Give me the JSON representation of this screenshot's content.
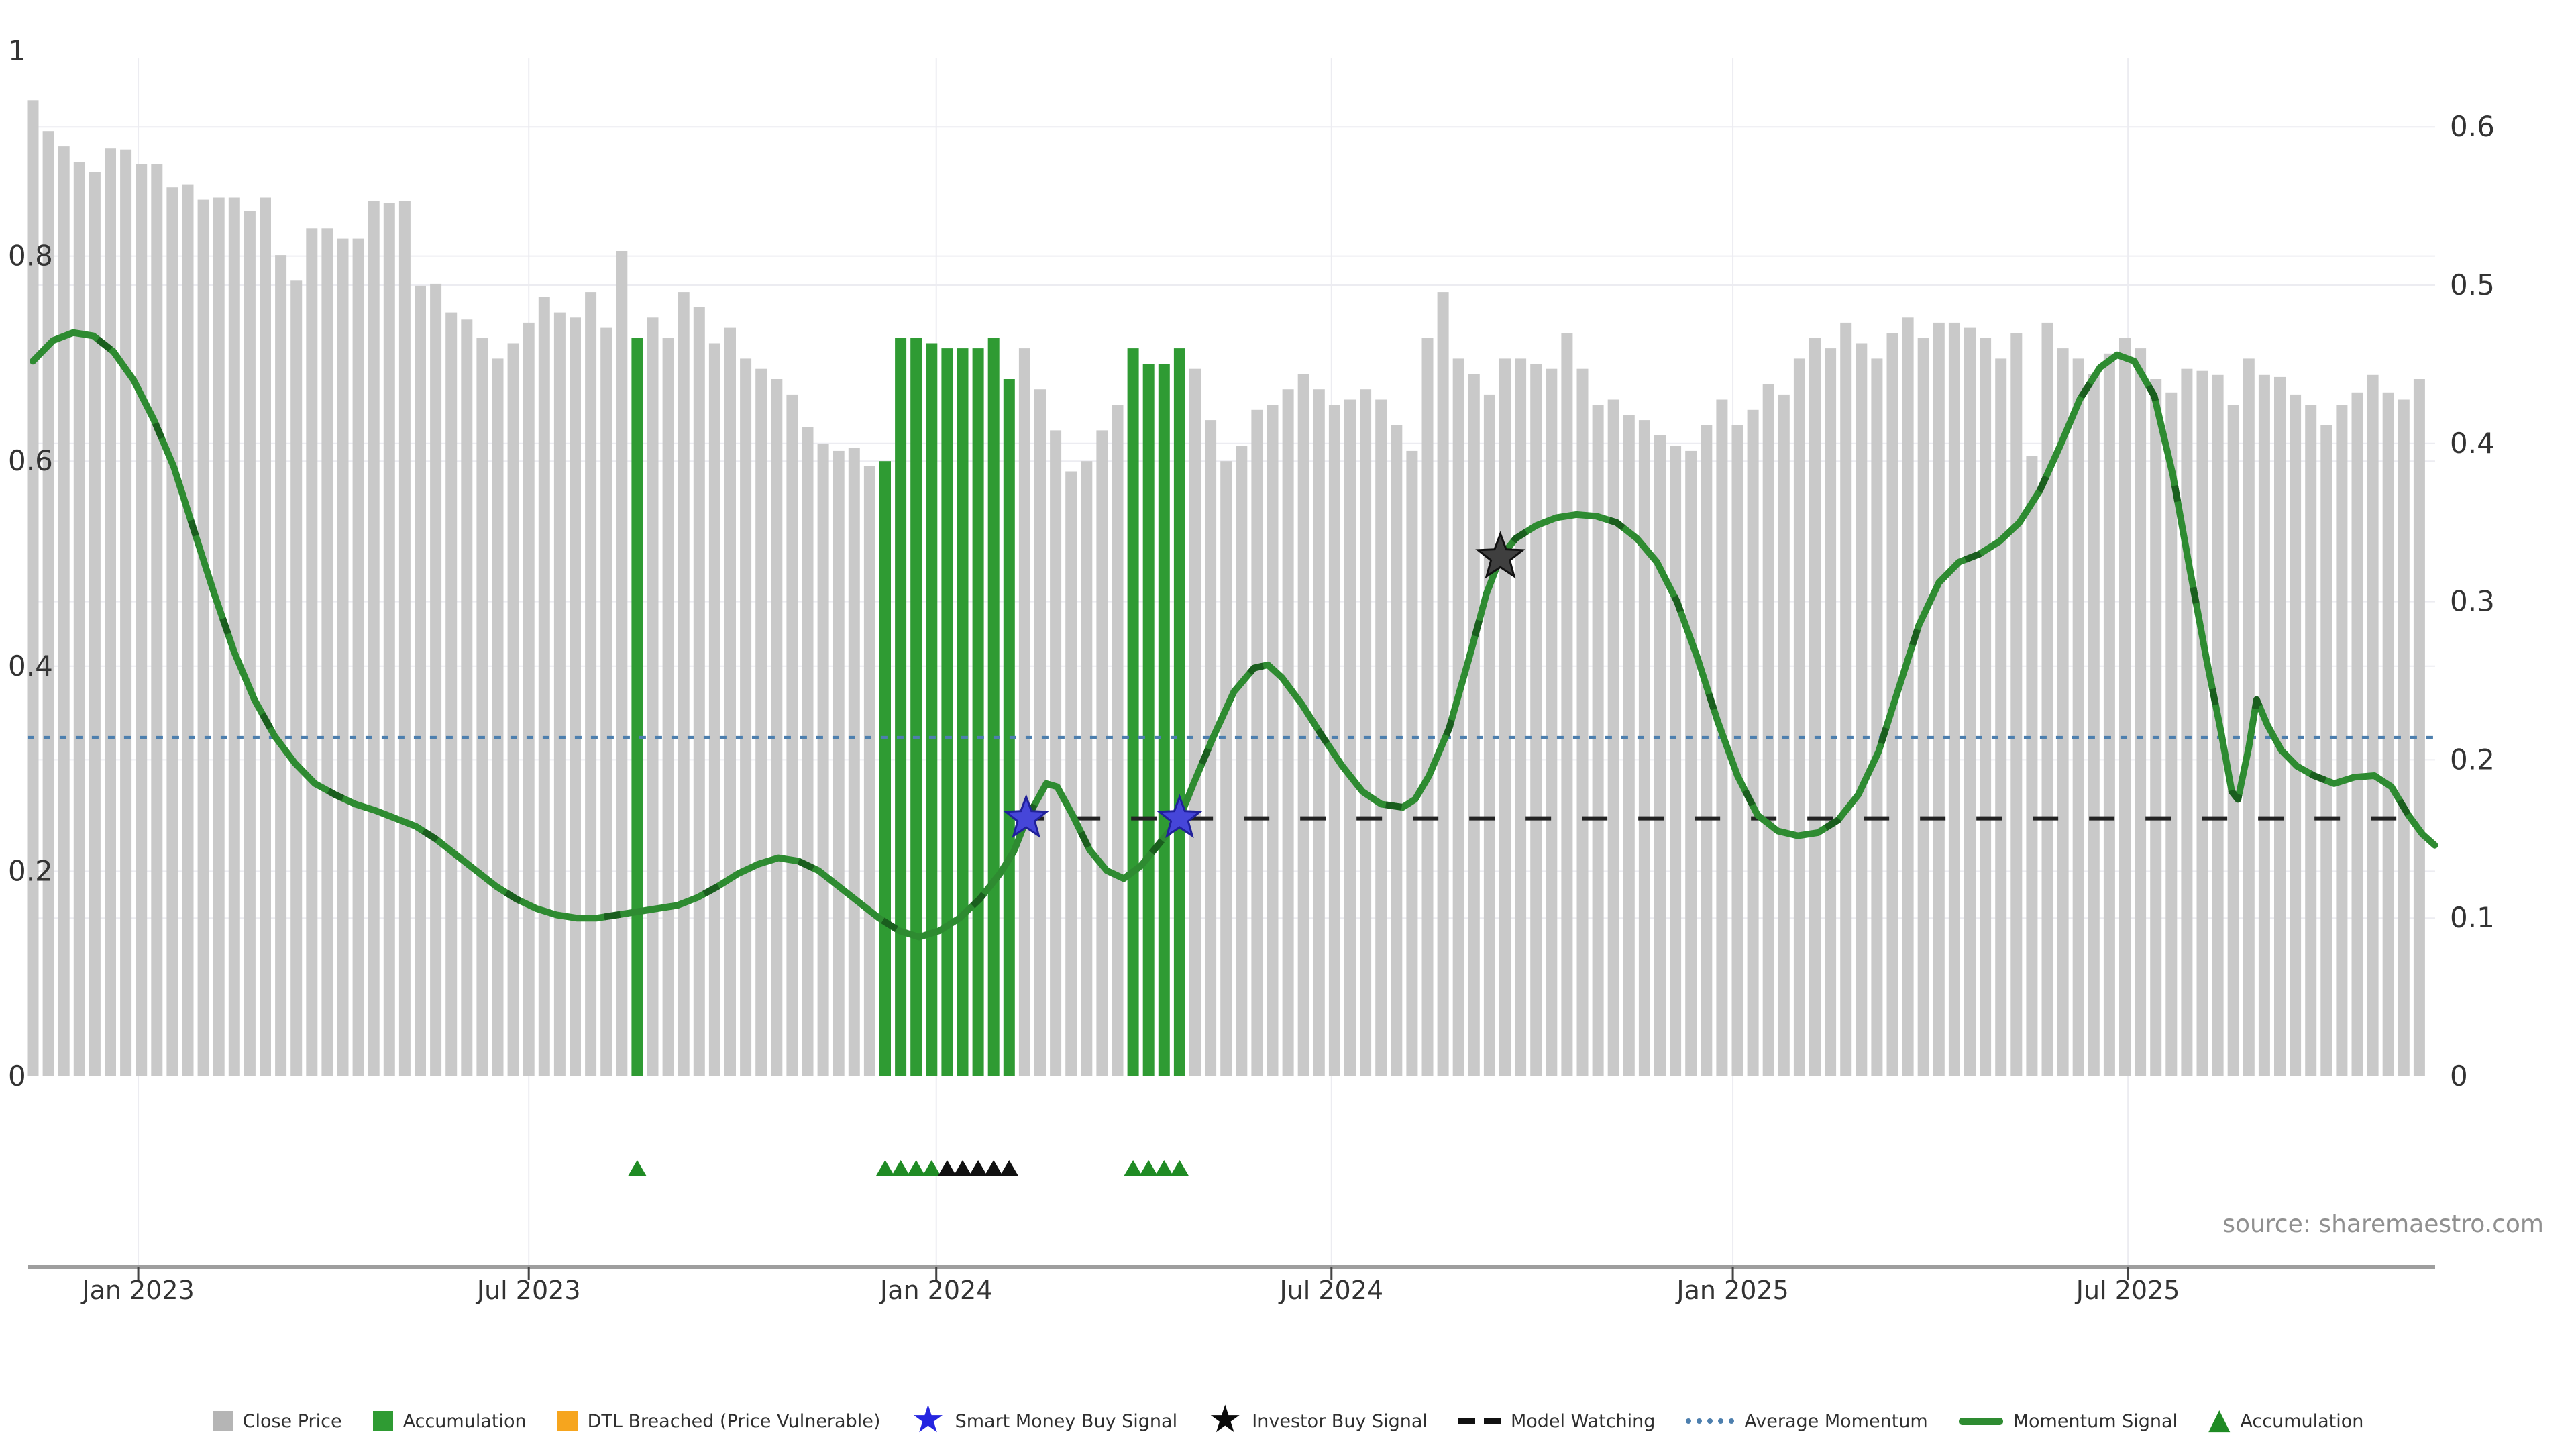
{
  "source_note": "source: sharemaestro.com",
  "chart_data": {
    "type": "bar+line",
    "title": "",
    "x_unit": "weeks (Nov 2022 - Nov 2025)",
    "grid": "on",
    "x_ticks": [
      {
        "label": "Jan 2023",
        "week": 6.8
      },
      {
        "label": "Jul 2023",
        "week": 32.0
      },
      {
        "label": "Jan 2024",
        "week": 58.3
      },
      {
        "label": "Jul 2024",
        "week": 83.8
      },
      {
        "label": "Jan 2025",
        "week": 109.7
      },
      {
        "label": "Jul 2025",
        "week": 135.2
      }
    ],
    "left_axis": {
      "range": [
        0,
        1
      ],
      "ticks": [
        {
          "label": "1",
          "value": 1
        },
        {
          "label": "0.8",
          "value": 0.8
        },
        {
          "label": "0.6",
          "value": 0.6
        },
        {
          "label": "0.4",
          "value": 0.4
        },
        {
          "label": "0.2",
          "value": 0.2
        },
        {
          "label": "0",
          "value": 0
        }
      ]
    },
    "right_axis": {
      "range": [
        0,
        0.64
      ],
      "ticks": [
        {
          "label": "0.6",
          "value": 0.6
        },
        {
          "label": "0.5",
          "value": 0.5
        },
        {
          "label": "0.4",
          "value": 0.4
        },
        {
          "label": "0.3",
          "value": 0.3
        },
        {
          "label": "0.2",
          "value": 0.2
        },
        {
          "label": "0.1",
          "value": 0.1
        },
        {
          "label": "0",
          "value": 0
        }
      ]
    },
    "series": {
      "close_price": {
        "name": "Close Price",
        "type": "bar",
        "axis": "left",
        "color": "#c9c9c9",
        "values": [
          0.952,
          0.922,
          0.907,
          0.892,
          0.882,
          0.905,
          0.904,
          0.89,
          0.89,
          0.867,
          0.87,
          0.855,
          0.857,
          0.857,
          0.844,
          0.857,
          0.801,
          0.776,
          0.827,
          0.827,
          0.817,
          0.817,
          0.854,
          0.852,
          0.854,
          0.771,
          0.773,
          0.745,
          0.738,
          0.72,
          0.7,
          0.715,
          0.735,
          0.76,
          0.745,
          0.74,
          0.765,
          0.73,
          0.805,
          0.72,
          0.74,
          0.72,
          0.765,
          0.75,
          0.715,
          0.73,
          0.7,
          0.69,
          0.68,
          0.665,
          0.633,
          0.617,
          0.61,
          0.613,
          0.595,
          0.6,
          0.72,
          0.72,
          0.715,
          0.71,
          0.71,
          0.71,
          0.72,
          0.68,
          0.71,
          0.67,
          0.63,
          0.59,
          0.6,
          0.63,
          0.655,
          0.71,
          0.695,
          0.695,
          0.71,
          0.69,
          0.64,
          0.6,
          0.615,
          0.65,
          0.655,
          0.67,
          0.685,
          0.67,
          0.655,
          0.66,
          0.67,
          0.66,
          0.635,
          0.61,
          0.72,
          0.765,
          0.7,
          0.685,
          0.665,
          0.7,
          0.7,
          0.695,
          0.69,
          0.725,
          0.69,
          0.655,
          0.66,
          0.645,
          0.64,
          0.625,
          0.615,
          0.61,
          0.635,
          0.66,
          0.635,
          0.65,
          0.675,
          0.665,
          0.7,
          0.72,
          0.71,
          0.735,
          0.715,
          0.7,
          0.725,
          0.74,
          0.72,
          0.735,
          0.735,
          0.73,
          0.72,
          0.7,
          0.725,
          0.605,
          0.735,
          0.71,
          0.7,
          0.685,
          0.705,
          0.72,
          0.71,
          0.68,
          0.667,
          0.69,
          0.688,
          0.684,
          0.655,
          0.7,
          0.684,
          0.682,
          0.665,
          0.655,
          0.635,
          0.655,
          0.667,
          0.684,
          0.667,
          0.66,
          0.68
        ]
      },
      "accumulation_bars": {
        "name": "Accumulation",
        "type": "bar-highlight",
        "color": "#2f9b33",
        "weeks": [
          39,
          55,
          56,
          57,
          58,
          59,
          60,
          61,
          62,
          63,
          71,
          72,
          73,
          74
        ]
      },
      "momentum_signal": {
        "name": "Momentum Signal",
        "type": "line",
        "axis": "right",
        "color": "#2e8b31",
        "dash_color": "#1a5e1e",
        "points": [
          [
            0,
            0.452
          ],
          [
            1.3,
            0.465
          ],
          [
            2.6,
            0.47
          ],
          [
            3.9,
            0.468
          ],
          [
            5.2,
            0.458
          ],
          [
            6.5,
            0.44
          ],
          [
            7.8,
            0.415
          ],
          [
            9.1,
            0.385
          ],
          [
            10.4,
            0.345
          ],
          [
            11.7,
            0.305
          ],
          [
            13,
            0.268
          ],
          [
            14.3,
            0.238
          ],
          [
            15.6,
            0.215
          ],
          [
            16.9,
            0.198
          ],
          [
            18.2,
            0.185
          ],
          [
            19.5,
            0.178
          ],
          [
            20.8,
            0.172
          ],
          [
            22.1,
            0.168
          ],
          [
            23.4,
            0.163
          ],
          [
            24.7,
            0.158
          ],
          [
            26,
            0.15
          ],
          [
            27.3,
            0.14
          ],
          [
            28.6,
            0.13
          ],
          [
            29.9,
            0.12
          ],
          [
            31.2,
            0.112
          ],
          [
            32.5,
            0.106
          ],
          [
            33.8,
            0.102
          ],
          [
            35.1,
            0.1
          ],
          [
            36.4,
            0.1
          ],
          [
            37.7,
            0.102
          ],
          [
            39,
            0.104
          ],
          [
            40.3,
            0.106
          ],
          [
            41.6,
            0.108
          ],
          [
            42.9,
            0.113
          ],
          [
            44.2,
            0.12
          ],
          [
            45.5,
            0.128
          ],
          [
            46.8,
            0.134
          ],
          [
            48.1,
            0.138
          ],
          [
            49.4,
            0.136
          ],
          [
            50.7,
            0.13
          ],
          [
            52,
            0.12
          ],
          [
            53.3,
            0.11
          ],
          [
            54.6,
            0.1
          ],
          [
            55.9,
            0.092
          ],
          [
            57.2,
            0.088
          ],
          [
            58.5,
            0.092
          ],
          [
            59.8,
            0.1
          ],
          [
            61.1,
            0.112
          ],
          [
            62.4,
            0.128
          ],
          [
            63.3,
            0.142
          ],
          [
            64.1,
            0.162
          ],
          [
            65.4,
            0.185
          ],
          [
            66.1,
            0.183
          ],
          [
            67.1,
            0.165
          ],
          [
            68.2,
            0.143
          ],
          [
            69.3,
            0.13
          ],
          [
            70.4,
            0.125
          ],
          [
            71.5,
            0.133
          ],
          [
            72.6,
            0.146
          ],
          [
            74,
            0.163
          ],
          [
            74.9,
            0.185
          ],
          [
            76.2,
            0.215
          ],
          [
            77.5,
            0.243
          ],
          [
            78.8,
            0.258
          ],
          [
            79.7,
            0.26
          ],
          [
            80.6,
            0.252
          ],
          [
            81.9,
            0.235
          ],
          [
            83.2,
            0.215
          ],
          [
            84.5,
            0.196
          ],
          [
            85.8,
            0.18
          ],
          [
            87,
            0.172
          ],
          [
            88.4,
            0.17
          ],
          [
            89.2,
            0.175
          ],
          [
            90.1,
            0.19
          ],
          [
            91.4,
            0.22
          ],
          [
            92.7,
            0.265
          ],
          [
            93.8,
            0.305
          ],
          [
            94.7,
            0.328
          ],
          [
            95.7,
            0.34
          ],
          [
            97,
            0.348
          ],
          [
            98.3,
            0.353
          ],
          [
            99.6,
            0.355
          ],
          [
            100.9,
            0.354
          ],
          [
            102.2,
            0.35
          ],
          [
            103.5,
            0.34
          ],
          [
            104.8,
            0.325
          ],
          [
            106.1,
            0.3
          ],
          [
            107.4,
            0.265
          ],
          [
            108.7,
            0.225
          ],
          [
            110,
            0.19
          ],
          [
            111.3,
            0.165
          ],
          [
            112.6,
            0.155
          ],
          [
            113.9,
            0.152
          ],
          [
            115.2,
            0.154
          ],
          [
            116.5,
            0.162
          ],
          [
            117.8,
            0.178
          ],
          [
            119.1,
            0.205
          ],
          [
            120.4,
            0.245
          ],
          [
            121.7,
            0.285
          ],
          [
            123,
            0.312
          ],
          [
            124.3,
            0.325
          ],
          [
            125.6,
            0.33
          ],
          [
            126.9,
            0.338
          ],
          [
            128.2,
            0.35
          ],
          [
            129.5,
            0.37
          ],
          [
            130.8,
            0.398
          ],
          [
            132.1,
            0.428
          ],
          [
            133.4,
            0.448
          ],
          [
            134.5,
            0.456
          ],
          [
            135.6,
            0.452
          ],
          [
            136.9,
            0.43
          ],
          [
            138.1,
            0.38
          ],
          [
            139.2,
            0.32
          ],
          [
            140.3,
            0.262
          ],
          [
            141.2,
            0.218
          ],
          [
            141.9,
            0.18
          ],
          [
            142.3,
            0.175
          ],
          [
            143,
            0.208
          ],
          [
            143.5,
            0.238
          ],
          [
            144.2,
            0.222
          ],
          [
            145.1,
            0.206
          ],
          [
            146.1,
            0.196
          ],
          [
            147.2,
            0.19
          ],
          [
            148.5,
            0.185
          ],
          [
            149.8,
            0.189
          ],
          [
            151.1,
            0.19
          ],
          [
            152.2,
            0.183
          ],
          [
            153.3,
            0.165
          ],
          [
            154.2,
            0.153
          ],
          [
            155,
            0.146
          ]
        ]
      },
      "average_momentum": {
        "name": "Average Momentum",
        "type": "hline",
        "axis": "right",
        "value": 0.214,
        "style": "dotted",
        "color": "#4d7fae",
        "from_week": -0.35,
        "to_week": 155
      },
      "model_watching": {
        "name": "Model Watching",
        "type": "hline",
        "axis": "right",
        "value": 0.163,
        "style": "dashed",
        "color": "#222222",
        "from_week": 63.6,
        "to_week": 154.4
      },
      "smart_money_buy": {
        "name": "Smart Money Buy Signal",
        "type": "star",
        "axis": "right",
        "color": "#4646d9",
        "edge": "#20209a",
        "points": [
          [
            64.1,
            0.163
          ],
          [
            74.0,
            0.163
          ]
        ]
      },
      "investor_buy": {
        "name": "Investor Buy Signal",
        "type": "star",
        "axis": "right",
        "color": "#3f3f3f",
        "edge": "#111111",
        "points": [
          [
            94.7,
            0.328
          ]
        ]
      },
      "accumulation_markers": {
        "name": "Accumulation",
        "type": "triangle",
        "green": "#1f8b24",
        "black": "#111111",
        "green_weeks": [
          39,
          55,
          56,
          57,
          58,
          71,
          72,
          73,
          74
        ],
        "black_weeks": [
          59,
          60,
          61,
          62,
          63
        ]
      }
    }
  },
  "legend": {
    "items": [
      {
        "label": "Close Price",
        "marker": "square",
        "color": "#b5b5b5"
      },
      {
        "label": "Accumulation",
        "marker": "square",
        "color": "#2f9b33"
      },
      {
        "label": "DTL Breached (Price Vulnerable)",
        "marker": "square",
        "color": "#f6a51e"
      },
      {
        "label": "Smart Money Buy Signal",
        "marker": "star",
        "color": "#2525e0"
      },
      {
        "label": "Investor Buy Signal",
        "marker": "star",
        "color": "#0a0a0a"
      },
      {
        "label": "Model Watching",
        "marker": "dash",
        "color": "#111111"
      },
      {
        "label": "Average Momentum",
        "marker": "dots",
        "color": "#4d7fae"
      },
      {
        "label": "Momentum Signal",
        "marker": "line",
        "color": "#2e8b31"
      },
      {
        "label": "Accumulation",
        "marker": "triangle",
        "color": "#1f8b24"
      }
    ]
  },
  "colors": {
    "grid": "#ececf1",
    "axis_spine": "#9e9e9e",
    "tick_text": "#333333",
    "source_text": "#909090"
  }
}
